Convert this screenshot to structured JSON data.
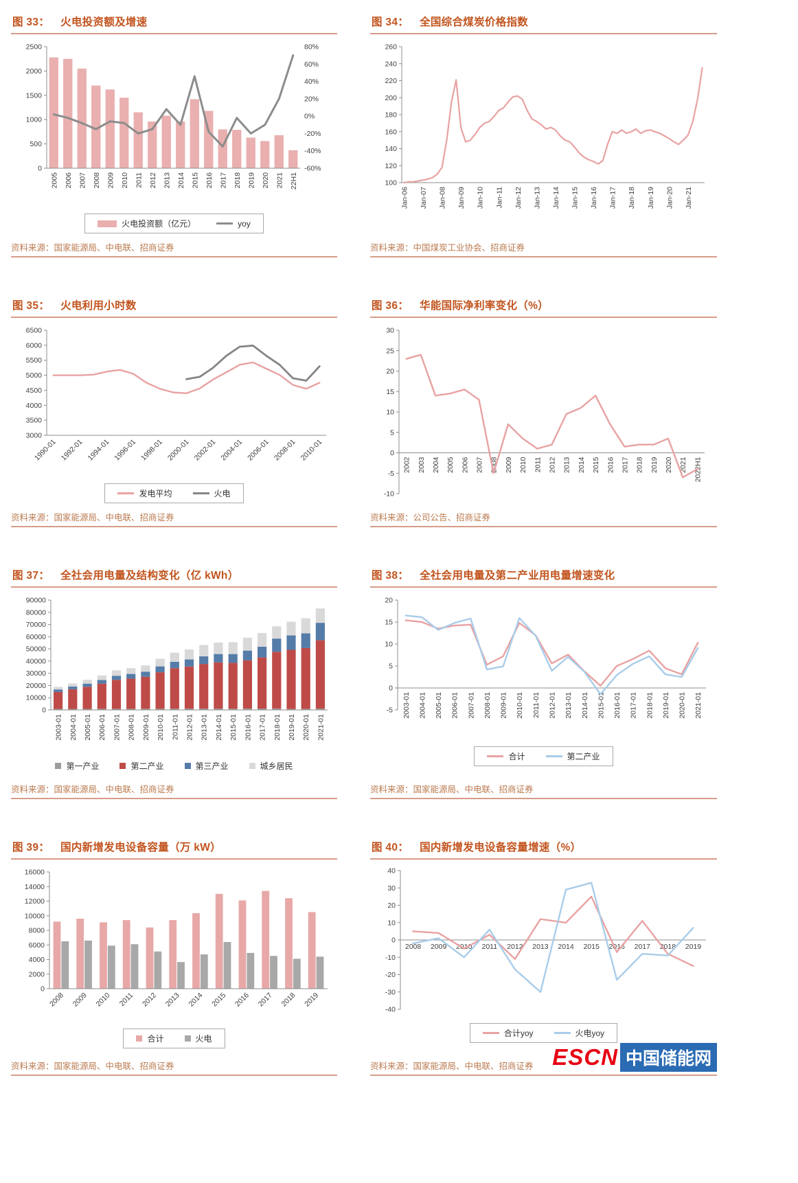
{
  "footer": {
    "escn": "ESCN",
    "site": "中国储能网"
  },
  "chart_data": [
    {
      "id": "fig-33",
      "type": "combo",
      "fig_label": "图 33：",
      "title": "火电投资额及增速",
      "source": "资料来源：国家能源局、中电联、招商证券",
      "x_ticks": [
        "2005",
        "2006",
        "2007",
        "2008",
        "2009",
        "2010",
        "2011",
        "2012",
        "2013",
        "2014",
        "2015",
        "2016",
        "2017",
        "2018",
        "2019",
        "2020",
        "2021",
        "22H1"
      ],
      "x_tick_step": 1,
      "x_rotate": 90,
      "ylim": [
        0,
        2500
      ],
      "ystep": 500,
      "y2lim": [
        -60,
        80
      ],
      "y2step": 20,
      "y2suffix": "%",
      "legend": {
        "boxed": true
      },
      "series": [
        {
          "name": "火电投资额（亿元）",
          "kind": "bar",
          "color": "#eaafaf",
          "values": [
            2280,
            2250,
            2050,
            1700,
            1620,
            1450,
            1150,
            960,
            1080,
            960,
            1420,
            1180,
            800,
            790,
            630,
            560,
            680,
            370
          ]
        },
        {
          "name": "yoy",
          "kind": "line",
          "color": "#8c8c8c",
          "width": 3,
          "axis": "right",
          "values": [
            2,
            -2,
            -8,
            -15,
            -6,
            -8,
            -20,
            -15,
            8,
            -10,
            46,
            -18,
            -35,
            -2,
            -20,
            -10,
            20,
            70
          ]
        }
      ]
    },
    {
      "id": "fig-34",
      "type": "line",
      "fig_label": "图 34：",
      "title": "全国综合煤炭价格指数",
      "source": "资料来源：中国煤炭工业协会、招商证券",
      "x_ticks": [
        "Jan-06",
        "Jan-07",
        "Jan-08",
        "Jan-09",
        "Jan-10",
        "Jan-11",
        "Jan-12",
        "Jan-13",
        "Jan-14",
        "Jan-15",
        "Jan-16",
        "Jan-17",
        "Jan-18",
        "Jan-19",
        "Jan-20",
        "Jan-21"
      ],
      "x_tick_step": 4,
      "x_rotate": 90,
      "ylim": [
        100,
        260
      ],
      "ystep": 20,
      "legend": null,
      "series": [
        {
          "kind": "line",
          "color": "#e8a2a2",
          "width": 2.2,
          "values": [
            100,
            101,
            101,
            102,
            103,
            104,
            106,
            110,
            118,
            150,
            195,
            221,
            165,
            148,
            150,
            157,
            165,
            170,
            172,
            178,
            185,
            188,
            195,
            201,
            202,
            198,
            185,
            175,
            172,
            168,
            163,
            165,
            162,
            155,
            150,
            148,
            142,
            135,
            130,
            127,
            125,
            122,
            126,
            145,
            160,
            158,
            162,
            158,
            160,
            163,
            158,
            161,
            162,
            160,
            158,
            155,
            152,
            148,
            145,
            150,
            156,
            172,
            198,
            235
          ]
        }
      ]
    },
    {
      "id": "fig-35",
      "type": "line",
      "fig_label": "图 35：",
      "title": "火电利用小时数",
      "source": "资料来源：国家能源局、中电联、招商证券",
      "x_ticks": [
        "1990-01",
        "1992-01",
        "1994-01",
        "1996-01",
        "1998-01",
        "2000-01",
        "2002-01",
        "2004-01",
        "2006-01",
        "2008-01",
        "2010-01"
      ],
      "x_tick_step": 2,
      "x_rotate": 45,
      "ylim": [
        3000,
        6500
      ],
      "ystep": 500,
      "legend": {
        "boxed": true
      },
      "series": [
        {
          "name": "发电平均",
          "kind": "line",
          "color": "#e8a2a2",
          "width": 2.4,
          "values": [
            5000,
            5000,
            5000,
            5020,
            5120,
            5180,
            5050,
            4750,
            4550,
            4430,
            4400,
            4560,
            4860,
            5100,
            5350,
            5430,
            5220,
            5010,
            4680,
            4550,
            4750
          ]
        },
        {
          "name": "火电",
          "kind": "line",
          "color": "#858585",
          "width": 2.8,
          "values": [
            null,
            null,
            null,
            null,
            null,
            null,
            null,
            null,
            null,
            null,
            4870,
            4950,
            5250,
            5650,
            5950,
            5990,
            5650,
            5350,
            4900,
            4820,
            5300
          ]
        }
      ]
    },
    {
      "id": "fig-36",
      "type": "line",
      "fig_label": "图 36：",
      "title": "华能国际净利率变化（%）",
      "source": "资料来源：公司公告、招商证券",
      "x_ticks": [
        "2002",
        "2003",
        "2004",
        "2005",
        "2006",
        "2007",
        "2008",
        "2009",
        "2010",
        "2011",
        "2012",
        "2013",
        "2014",
        "2015",
        "2016",
        "2017",
        "2018",
        "2019",
        "2020",
        "2021",
        "2022H1"
      ],
      "x_tick_step": 1,
      "x_rotate": 90,
      "ylim": [
        -10,
        30
      ],
      "ystep": 5,
      "legend": null,
      "series": [
        {
          "kind": "line",
          "color": "#e8a2a2",
          "width": 2.4,
          "values": [
            23,
            24,
            14,
            14.5,
            15.5,
            13,
            -5,
            7,
            3.5,
            1,
            2,
            9.5,
            11,
            14,
            7,
            1.5,
            2,
            2,
            3.5,
            -6,
            -4
          ]
        }
      ]
    },
    {
      "id": "fig-37",
      "type": "bar",
      "stack": true,
      "fig_label": "图 37：",
      "title": "全社会用电量及结构变化（亿 kWh）",
      "source": "资料来源：国家能源局、中电联、招商证券",
      "x_ticks": [
        "2003-01",
        "2004-01",
        "2005-01",
        "2006-01",
        "2007-01",
        "2008-01",
        "2009-01",
        "2010-01",
        "2011-01",
        "2012-01",
        "2013-01",
        "2014-01",
        "2015-01",
        "2016-01",
        "2017-01",
        "2018-01",
        "2019-01",
        "2020-01",
        "2021-01"
      ],
      "x_tick_step": 1,
      "x_rotate": 90,
      "ylim": [
        0,
        90000
      ],
      "ystep": 10000,
      "legend": {
        "boxed": false
      },
      "series": [
        {
          "name": "第一产业",
          "kind": "bar",
          "color": "#9c9c9c",
          "values": [
            770,
            800,
            830,
            860,
            880,
            900,
            950,
            980,
            1010,
            1010,
            1010,
            990,
            1020,
            1080,
            1160,
            1200,
            780,
            860,
            1050
          ]
        },
        {
          "name": "第二产业",
          "kind": "bar",
          "color": "#be4b48",
          "values": [
            14020,
            16130,
            18110,
            20660,
            23750,
            24790,
            26210,
            29900,
            33180,
            34570,
            36630,
            37980,
            37550,
            39570,
            41830,
            46460,
            48470,
            49850,
            56100
          ]
        },
        {
          "name": "第三产业",
          "kind": "bar",
          "color": "#557ca8",
          "values": [
            2000,
            2300,
            2600,
            3000,
            3400,
            3800,
            4200,
            4800,
            5300,
            5800,
            6300,
            6800,
            7200,
            7960,
            8860,
            10800,
            11860,
            12090,
            14230
          ]
        },
        {
          "name": "城乡居民",
          "kind": "bar",
          "color": "#d9d9d9",
          "values": [
            2120,
            2505,
            3149,
            3728,
            4428,
            4778,
            5070,
            6243,
            7438,
            8211,
            9283,
            9463,
            9730,
            10588,
            11227,
            9989,
            11145,
            12310,
            11748
          ]
        }
      ]
    },
    {
      "id": "fig-38",
      "type": "line",
      "fig_label": "图 38：",
      "title": "全社会用电量及第二产业用电量增速变化",
      "source": "资料来源：国家能源局、中电联、招商证券",
      "x_ticks": [
        "2003-01",
        "2004-01",
        "2005-01",
        "2006-01",
        "2007-01",
        "2008-01",
        "2009-01",
        "2010-01",
        "2011-01",
        "2012-01",
        "2013-01",
        "2014-01",
        "2015-01",
        "2016-01",
        "2017-01",
        "2018-01",
        "2019-01",
        "2020-01",
        "2021-01"
      ],
      "x_tick_step": 1,
      "x_rotate": 90,
      "ylim": [
        -5,
        20
      ],
      "ystep": 5,
      "legend": {
        "boxed": true
      },
      "series": [
        {
          "name": "合计",
          "kind": "line",
          "color": "#e8a2a2",
          "width": 2.4,
          "values": [
            15.4,
            15.0,
            13.5,
            14.2,
            14.4,
            5.3,
            7.2,
            14.8,
            12.0,
            5.6,
            7.6,
            3.8,
            0.5,
            5.0,
            6.6,
            8.5,
            4.5,
            3.1,
            10.3
          ]
        },
        {
          "name": "第二产业",
          "kind": "line",
          "color": "#a9cce9",
          "width": 2.4,
          "values": [
            16.5,
            16.1,
            13.2,
            14.8,
            15.8,
            4.2,
            4.9,
            15.9,
            11.9,
            3.9,
            7.1,
            3.7,
            -1.4,
            2.9,
            5.5,
            7.2,
            3.1,
            2.5,
            9.1
          ]
        }
      ]
    },
    {
      "id": "fig-39",
      "type": "bar",
      "fig_label": "图 39：",
      "title": "国内新增发电设备容量（万 kW）",
      "source": "资料来源：国家能源局、中电联、招商证券",
      "x_ticks": [
        "2008",
        "2009",
        "2010",
        "2011",
        "2012",
        "2013",
        "2014",
        "2015",
        "2016",
        "2017",
        "2018",
        "2019"
      ],
      "x_tick_step": 1,
      "x_rotate": 45,
      "ylim": [
        0,
        16000
      ],
      "ystep": 2000,
      "legend": {
        "boxed": true
      },
      "series": [
        {
          "name": "合计",
          "kind": "bar",
          "color": "#e8a8a8",
          "values": [
            9200,
            9600,
            9100,
            9400,
            8400,
            9400,
            10350,
            13000,
            12100,
            13400,
            12400,
            10500
          ]
        },
        {
          "name": "火电",
          "kind": "bar",
          "color": "#a8a8a8",
          "values": [
            6500,
            6600,
            5900,
            6100,
            5100,
            3650,
            4700,
            6400,
            4900,
            4500,
            4100,
            4400
          ]
        }
      ]
    },
    {
      "id": "fig-40",
      "type": "line",
      "fig_label": "图 40：",
      "title": "国内新增发电设备容量增速（%）",
      "source": "资料来源：国家能源局、中电联、招商证券",
      "x_ticks": [
        "2008",
        "2009",
        "2010",
        "2011",
        "2012",
        "2013",
        "2014",
        "2015",
        "2016",
        "2017",
        "2018",
        "2019"
      ],
      "x_tick_step": 1,
      "x_rotate": 0,
      "ylim": [
        -40,
        40
      ],
      "ystep": 10,
      "legend": {
        "boxed": true
      },
      "series": [
        {
          "name": "合计yoy",
          "kind": "line",
          "color": "#e8a2a2",
          "width": 2.4,
          "values": [
            5,
            4,
            -5,
            3,
            -11,
            12,
            10,
            25,
            -7,
            11,
            -8,
            -15
          ]
        },
        {
          "name": "火电yoy",
          "kind": "line",
          "color": "#a9cce9",
          "width": 2.4,
          "values": [
            -2,
            1,
            -10,
            6,
            -17,
            -30,
            29,
            33,
            -23,
            -8,
            -9,
            7
          ]
        }
      ]
    }
  ]
}
